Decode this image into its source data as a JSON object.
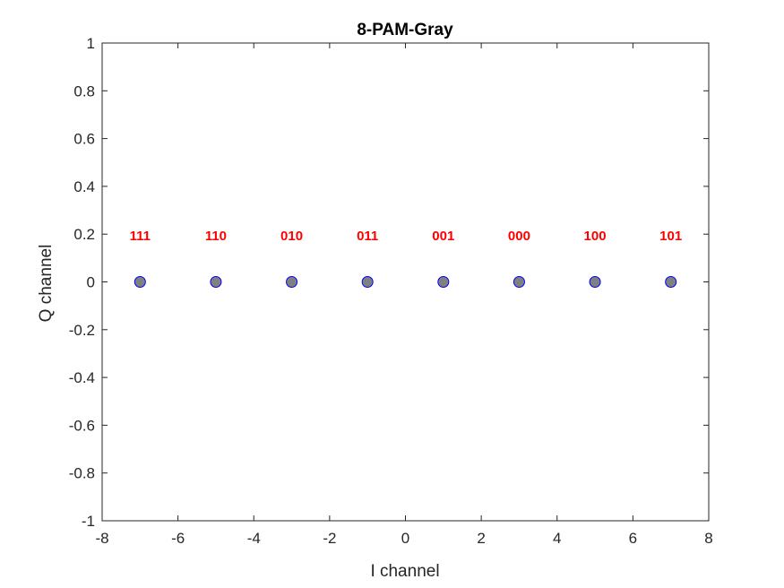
{
  "chart_data": {
    "type": "scatter",
    "title": "8-PAM-Gray",
    "xlabel": "I channel",
    "ylabel": "Q channel",
    "xlim": [
      -8,
      8
    ],
    "ylim": [
      -1,
      1
    ],
    "xticks": [
      -8,
      -6,
      -4,
      -2,
      0,
      2,
      4,
      6,
      8
    ],
    "yticks": [
      -1,
      -0.8,
      -0.6,
      -0.4,
      -0.2,
      0,
      0.2,
      0.4,
      0.6,
      0.8,
      1
    ],
    "xtick_labels": [
      "-8",
      "-6",
      "-4",
      "-2",
      "0",
      "2",
      "4",
      "6",
      "8"
    ],
    "ytick_labels": [
      "-1",
      "-0.8",
      "-0.6",
      "-0.4",
      "-0.2",
      "0",
      "0.2",
      "0.4",
      "0.6",
      "0.8",
      "1"
    ],
    "grid": false,
    "points": [
      {
        "x": -7,
        "y": 0,
        "label": "111"
      },
      {
        "x": -5,
        "y": 0,
        "label": "110"
      },
      {
        "x": -3,
        "y": 0,
        "label": "010"
      },
      {
        "x": -1,
        "y": 0,
        "label": "011"
      },
      {
        "x": 1,
        "y": 0,
        "label": "001"
      },
      {
        "x": 3,
        "y": 0,
        "label": "000"
      },
      {
        "x": 5,
        "y": 0,
        "label": "100"
      },
      {
        "x": 7,
        "y": 0,
        "label": "101"
      }
    ],
    "marker_fill": "#808080",
    "marker_edge": "#0000ff",
    "label_color": "#ff0000"
  }
}
